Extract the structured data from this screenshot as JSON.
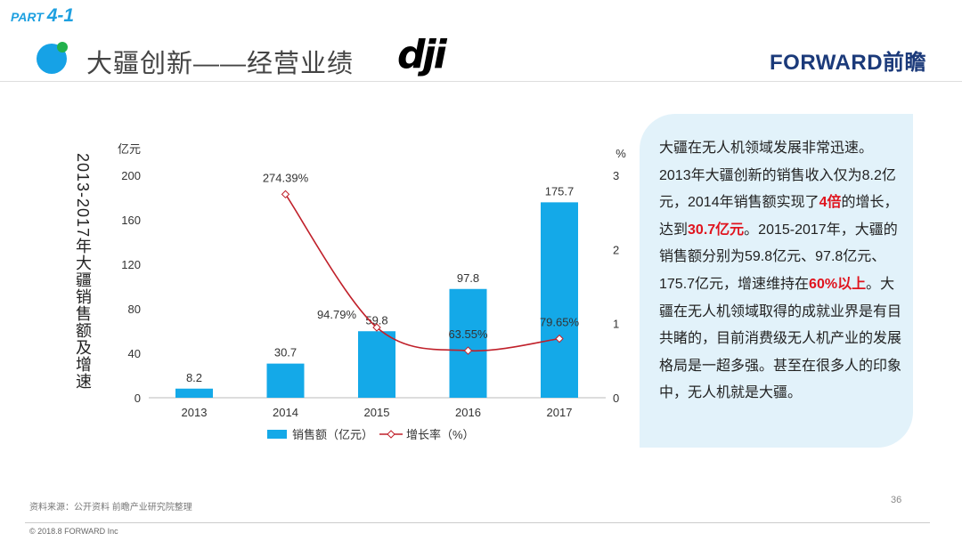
{
  "header": {
    "part_label": "PART",
    "part_number": "4-1",
    "title": "大疆创新——经营业绩",
    "logo_dji": "dji",
    "logo_forward": "FORWARD前瞻"
  },
  "chart_data": {
    "type": "bar",
    "y_title": "2013-2017年大疆销售额及增速",
    "categories": [
      "2013",
      "2014",
      "2015",
      "2016",
      "2017"
    ],
    "left_axis": {
      "unit": "亿元",
      "ylim": [
        0,
        200
      ],
      "ticks": [
        "0",
        "40",
        "80",
        "120",
        "160",
        "200"
      ]
    },
    "right_axis": {
      "unit": "%",
      "ylim": [
        0,
        3
      ],
      "ticks": [
        "0",
        "1",
        "2",
        "3"
      ]
    },
    "series": [
      {
        "name": "销售额（亿元）",
        "type": "bar",
        "axis": "left",
        "color": "#14a9e8",
        "values": [
          8.2,
          30.7,
          59.8,
          97.8,
          175.7
        ],
        "labels": [
          "8.2",
          "30.7",
          "59.8",
          "97.8",
          "175.7"
        ]
      },
      {
        "name": "增长率（%）",
        "type": "line",
        "axis": "right",
        "color": "#c0202a",
        "values": [
          null,
          2.7439,
          0.9479,
          0.6355,
          0.7965
        ],
        "labels": [
          "",
          "274.39%",
          "94.79%",
          "63.55%",
          "79.65%"
        ]
      }
    ],
    "legend": "bottom",
    "grid": false
  },
  "panel": {
    "parts": [
      {
        "t": "大疆在无人机领域发展非常迅速。2013年大疆创新的销售收入仅为8.2亿元，2014年销售额实现了",
        "hl": false
      },
      {
        "t": "4倍",
        "hl": true
      },
      {
        "t": "的增长，达到",
        "hl": false
      },
      {
        "t": "30.7亿元",
        "hl": true
      },
      {
        "t": "。2015-2017年，大疆的销售额分别为59.8亿元、97.8亿元、175.7亿元，增速维持在",
        "hl": false
      },
      {
        "t": "60%以上",
        "hl": true
      },
      {
        "t": "。大疆在无人机领域取得的成就业界是有目共睹的，目前消费级无人机产业的发展格局是一超多强。甚至在很多人的印象中，无人机就是大疆。",
        "hl": false
      }
    ]
  },
  "footer": {
    "source": "资料来源：公开资料 前瞻产业研究院整理",
    "page_number": "36",
    "copyright": "© 2018.8 FORWARD Inc"
  }
}
